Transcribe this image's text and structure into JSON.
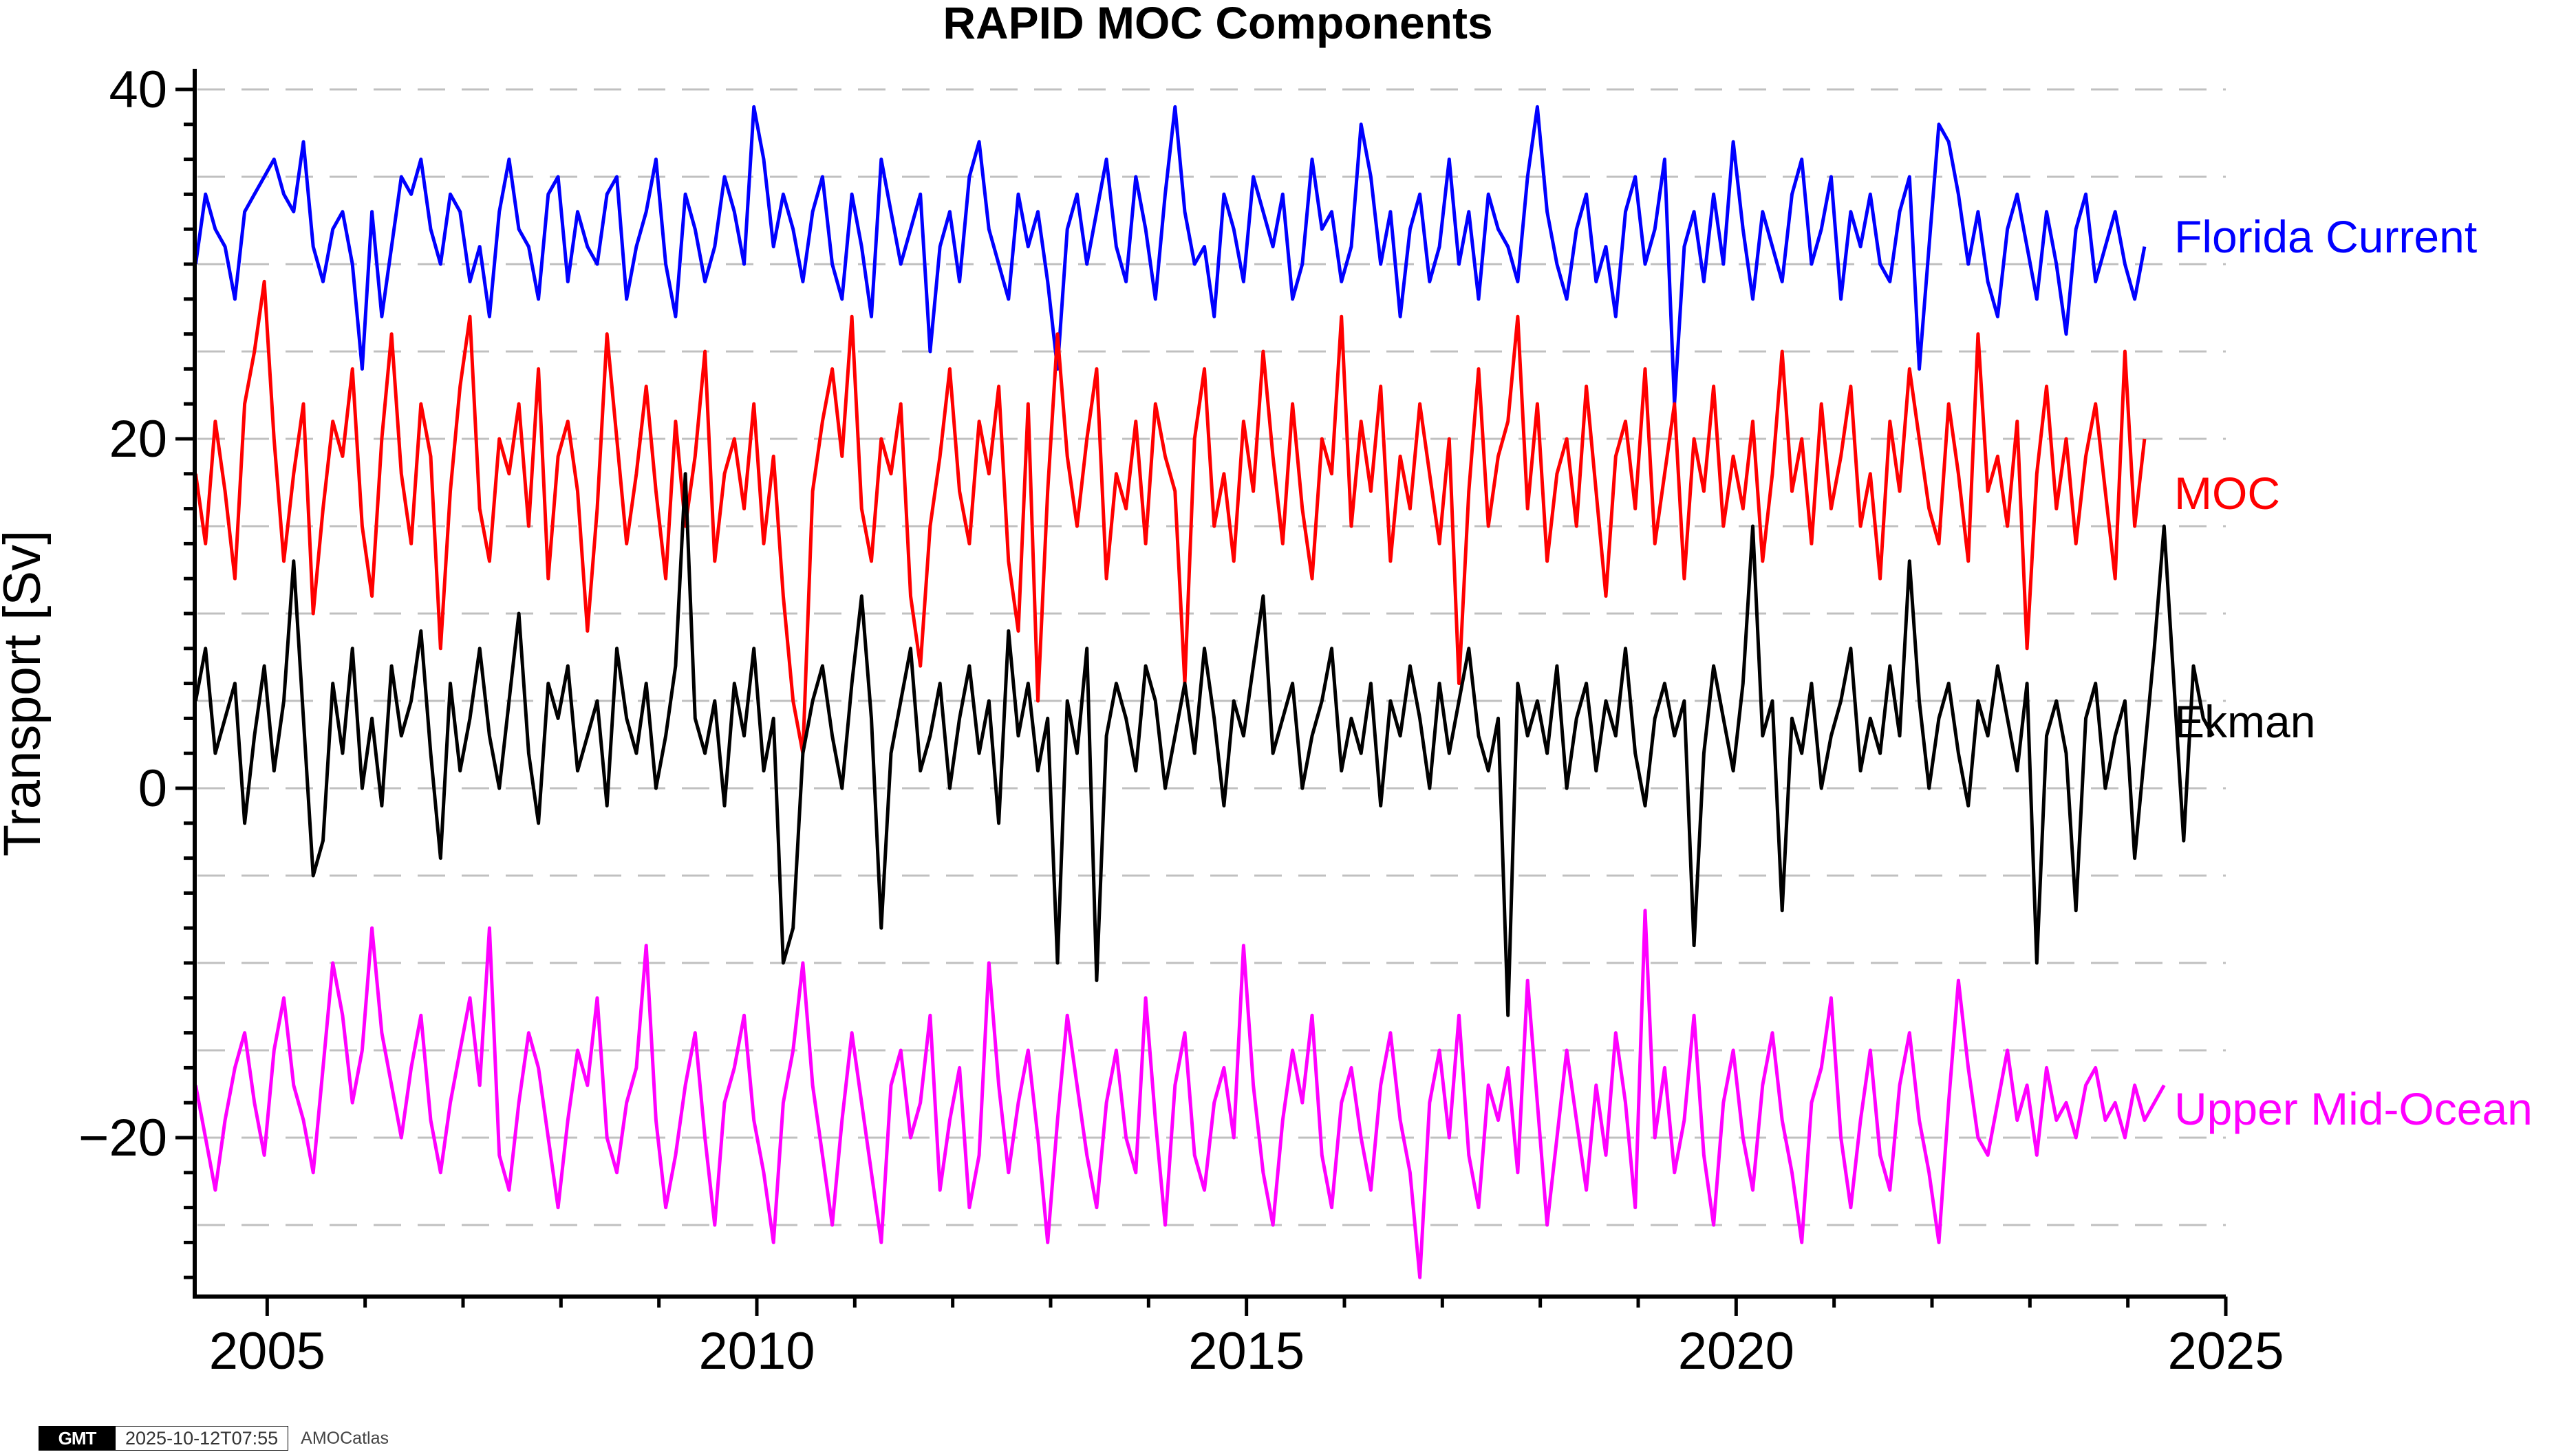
{
  "chart_data": {
    "type": "line",
    "title": "RAPID MOC Components",
    "xlabel": "",
    "ylabel": "Transport [Sv]",
    "xlim": [
      2004.26,
      2025
    ],
    "ylim": [
      -29.1,
      40.5
    ],
    "x_ticks": [
      2005,
      2010,
      2015,
      2020,
      2025
    ],
    "x_tick_labels": [
      "2005",
      "2010",
      "2015",
      "2020",
      "2025"
    ],
    "y_ticks": [
      -20,
      0,
      20,
      40
    ],
    "y_tick_labels": [
      "−20",
      "0",
      "20",
      "40"
    ],
    "y_minor_step": 2,
    "grid": {
      "horizontal_dashed_every": 5,
      "color": "#c0c0c0"
    },
    "legend": {
      "position": "right-inline",
      "style": "text labels beside series end"
    },
    "x_start": 2004.27,
    "x_step": 0.1,
    "series": [
      {
        "name": "Florida Current",
        "color": "#0000ff",
        "values": [
          30,
          34,
          32,
          31,
          28,
          33,
          34,
          35,
          36,
          34,
          33,
          37,
          31,
          29,
          32,
          33,
          30,
          24,
          33,
          27,
          31,
          35,
          34,
          36,
          32,
          30,
          34,
          33,
          29,
          31,
          27,
          33,
          36,
          32,
          31,
          28,
          34,
          35,
          29,
          33,
          31,
          30,
          34,
          35,
          28,
          31,
          33,
          36,
          30,
          27,
          34,
          32,
          29,
          31,
          35,
          33,
          30,
          39,
          36,
          31,
          34,
          32,
          29,
          33,
          35,
          30,
          28,
          34,
          31,
          27,
          36,
          33,
          30,
          32,
          34,
          25,
          31,
          33,
          29,
          35,
          37,
          32,
          30,
          28,
          34,
          31,
          33,
          29,
          24,
          32,
          34,
          30,
          33,
          36,
          31,
          29,
          35,
          32,
          28,
          34,
          39,
          33,
          30,
          31,
          27,
          34,
          32,
          29,
          35,
          33,
          31,
          34,
          28,
          30,
          36,
          32,
          33,
          29,
          31,
          38,
          35,
          30,
          33,
          27,
          32,
          34,
          29,
          31,
          36,
          30,
          33,
          28,
          34,
          32,
          31,
          29,
          35,
          39,
          33,
          30,
          28,
          32,
          34,
          29,
          31,
          27,
          33,
          35,
          30,
          32,
          36,
          22,
          31,
          33,
          29,
          34,
          30,
          37,
          32,
          28,
          33,
          31,
          29,
          34,
          36,
          30,
          32,
          35,
          28,
          33,
          31,
          34,
          30,
          29,
          33,
          35,
          24,
          31,
          38,
          37,
          34,
          30,
          33,
          29,
          27,
          32,
          34,
          31,
          28,
          33,
          30,
          26,
          32,
          34,
          29,
          31,
          33,
          30,
          28,
          31
        ]
      },
      {
        "name": "MOC",
        "color": "#ff0000",
        "values": [
          18,
          14,
          21,
          17,
          12,
          22,
          25,
          29,
          20,
          13,
          18,
          22,
          10,
          16,
          21,
          19,
          24,
          15,
          11,
          20,
          26,
          18,
          14,
          22,
          19,
          8,
          17,
          23,
          27,
          16,
          13,
          20,
          18,
          22,
          15,
          24,
          12,
          19,
          21,
          17,
          9,
          16,
          26,
          20,
          14,
          18,
          23,
          17,
          12,
          21,
          15,
          19,
          25,
          13,
          18,
          20,
          16,
          22,
          14,
          19,
          11,
          5,
          2,
          17,
          21,
          24,
          19,
          27,
          16,
          13,
          20,
          18,
          22,
          11,
          7,
          15,
          19,
          24,
          17,
          14,
          21,
          18,
          23,
          13,
          9,
          22,
          5,
          17,
          26,
          19,
          15,
          20,
          24,
          12,
          18,
          16,
          21,
          14,
          22,
          19,
          17,
          6,
          20,
          24,
          15,
          18,
          13,
          21,
          17,
          25,
          19,
          14,
          22,
          16,
          12,
          20,
          18,
          27,
          15,
          21,
          17,
          23,
          13,
          19,
          16,
          22,
          18,
          14,
          20,
          6,
          17,
          24,
          15,
          19,
          21,
          27,
          16,
          22,
          13,
          18,
          20,
          15,
          23,
          17,
          11,
          19,
          21,
          16,
          24,
          14,
          18,
          22,
          12,
          20,
          17,
          23,
          15,
          19,
          16,
          21,
          13,
          18,
          25,
          17,
          20,
          14,
          22,
          16,
          19,
          23,
          15,
          18,
          12,
          21,
          17,
          24,
          20,
          16,
          14,
          22,
          18,
          13,
          26,
          17,
          19,
          15,
          21,
          8,
          18,
          23,
          16,
          20,
          14,
          19,
          22,
          17,
          12,
          25,
          15,
          20
        ]
      },
      {
        "name": "Ekman",
        "color": "#000000",
        "values": [
          5,
          8,
          2,
          4,
          6,
          -2,
          3,
          7,
          1,
          5,
          13,
          4,
          -5,
          -3,
          6,
          2,
          8,
          0,
          4,
          -1,
          7,
          3,
          5,
          9,
          2,
          -4,
          6,
          1,
          4,
          8,
          3,
          0,
          5,
          10,
          2,
          -2,
          6,
          4,
          7,
          1,
          3,
          5,
          -1,
          8,
          4,
          2,
          6,
          0,
          3,
          7,
          18,
          4,
          2,
          5,
          -1,
          6,
          3,
          8,
          1,
          4,
          -10,
          -8,
          2,
          5,
          7,
          3,
          0,
          6,
          11,
          4,
          -8,
          2,
          5,
          8,
          1,
          3,
          6,
          0,
          4,
          7,
          2,
          5,
          -2,
          9,
          3,
          6,
          1,
          4,
          -10,
          5,
          2,
          8,
          -11,
          3,
          6,
          4,
          1,
          7,
          5,
          0,
          3,
          6,
          2,
          8,
          4,
          -1,
          5,
          3,
          7,
          11,
          2,
          4,
          6,
          0,
          3,
          5,
          8,
          1,
          4,
          2,
          6,
          -1,
          5,
          3,
          7,
          4,
          0,
          6,
          2,
          5,
          8,
          3,
          1,
          4,
          -13,
          6,
          3,
          5,
          2,
          7,
          0,
          4,
          6,
          1,
          5,
          3,
          8,
          2,
          -1,
          4,
          6,
          3,
          5,
          -9,
          2,
          7,
          4,
          1,
          6,
          15,
          3,
          5,
          -7,
          4,
          2,
          6,
          0,
          3,
          5,
          8,
          1,
          4,
          2,
          7,
          3,
          13,
          5,
          0,
          4,
          6,
          2,
          -1,
          5,
          3,
          7,
          4,
          1,
          6,
          -10,
          3,
          5,
          2,
          -7,
          4,
          6,
          0,
          3,
          5,
          -4,
          2,
          8,
          15,
          6,
          -3,
          7,
          4,
          3
        ]
      },
      {
        "name": "Upper Mid-Ocean",
        "color": "#ff00ff",
        "values": [
          -17,
          -20,
          -23,
          -19,
          -16,
          -14,
          -18,
          -21,
          -15,
          -12,
          -17,
          -19,
          -22,
          -16,
          -10,
          -13,
          -18,
          -15,
          -8,
          -14,
          -17,
          -20,
          -16,
          -13,
          -19,
          -22,
          -18,
          -15,
          -12,
          -17,
          -8,
          -21,
          -23,
          -18,
          -14,
          -16,
          -20,
          -24,
          -19,
          -15,
          -17,
          -12,
          -20,
          -22,
          -18,
          -16,
          -9,
          -19,
          -24,
          -21,
          -17,
          -14,
          -20,
          -25,
          -18,
          -16,
          -13,
          -19,
          -22,
          -26,
          -18,
          -15,
          -10,
          -17,
          -21,
          -25,
          -19,
          -14,
          -18,
          -22,
          -26,
          -17,
          -15,
          -20,
          -18,
          -13,
          -23,
          -19,
          -16,
          -24,
          -21,
          -10,
          -17,
          -22,
          -18,
          -15,
          -20,
          -26,
          -19,
          -13,
          -17,
          -21,
          -24,
          -18,
          -15,
          -20,
          -22,
          -12,
          -19,
          -25,
          -17,
          -14,
          -21,
          -23,
          -18,
          -16,
          -20,
          -9,
          -17,
          -22,
          -25,
          -19,
          -15,
          -18,
          -13,
          -21,
          -24,
          -18,
          -16,
          -20,
          -23,
          -17,
          -14,
          -19,
          -22,
          -28,
          -18,
          -15,
          -20,
          -13,
          -21,
          -24,
          -17,
          -19,
          -16,
          -22,
          -11,
          -18,
          -25,
          -20,
          -15,
          -19,
          -23,
          -17,
          -21,
          -14,
          -18,
          -24,
          -7,
          -20,
          -16,
          -22,
          -19,
          -13,
          -21,
          -25,
          -18,
          -15,
          -20,
          -23,
          -17,
          -14,
          -19,
          -22,
          -26,
          -18,
          -16,
          -12,
          -20,
          -24,
          -19,
          -15,
          -21,
          -23,
          -17,
          -14,
          -19,
          -22,
          -26,
          -18,
          -11,
          -16,
          -20,
          -21,
          -18,
          -15,
          -19,
          -17,
          -21,
          -16,
          -19,
          -18,
          -20,
          -17,
          -16,
          -19,
          -18,
          -20,
          -17,
          -19,
          -18,
          -17
        ]
      }
    ]
  },
  "footer": {
    "logo_text": "GMT",
    "timestamp": "2025-10-12T07:55",
    "source": "AMOCatlas"
  }
}
